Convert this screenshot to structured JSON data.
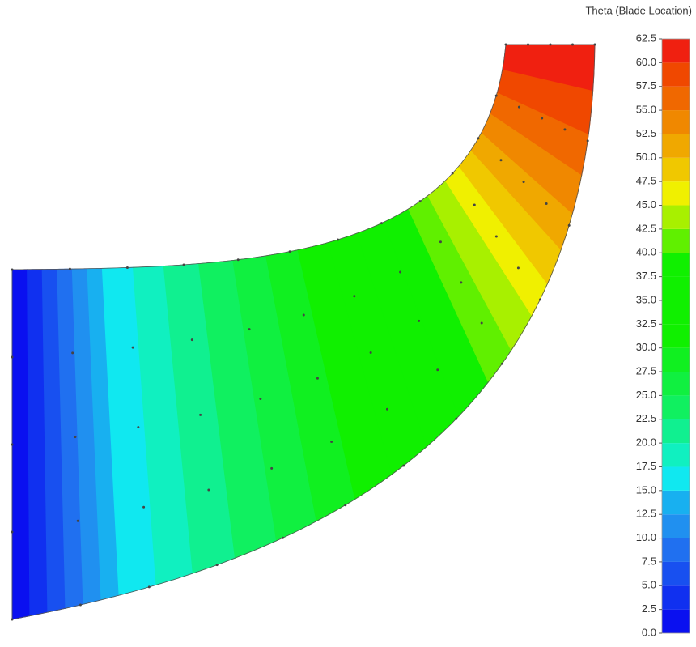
{
  "chart_data": {
    "type": "contour",
    "colorbar": {
      "title": "Theta (Blade Location)",
      "ticks": [
        {
          "value": 0,
          "label": "0.0"
        },
        2.5,
        {
          "value": 5,
          "label": "5.0"
        },
        7.5,
        {
          "value": 10,
          "label": "10.0"
        },
        12.5,
        {
          "value": 15,
          "label": "15.0"
        },
        17.5,
        {
          "value": 20,
          "label": "20.0"
        },
        22.5,
        {
          "value": 25,
          "label": "25.0"
        },
        27.5,
        {
          "value": 30,
          "label": "30.0"
        },
        32.5,
        {
          "value": 35,
          "label": "35.0"
        },
        37.5,
        {
          "value": 40,
          "label": "40.0"
        },
        42.5,
        {
          "value": 45,
          "label": "45.0"
        },
        47.5,
        {
          "value": 50,
          "label": "50.0"
        },
        52.5,
        {
          "value": 55,
          "label": "55.0"
        },
        57.5,
        {
          "value": 60,
          "label": "60.0"
        },
        62.5
      ],
      "colors": [
        "#0a10f0",
        "#1030f0",
        "#1850f0",
        "#2070f0",
        "#2090f0",
        "#18b0f0",
        "#10e8f0",
        "#10f0c0",
        "#10f090",
        "#10f060",
        "#10f040",
        "#10f020",
        "#10f000",
        "#10f000",
        "#10f000",
        "#10f000",
        "#60f000",
        "#a8f000",
        "#f0f000",
        "#f0c800",
        "#f0a800",
        "#f08800",
        "#f06800",
        "#f04800",
        "#f02010"
      ]
    }
  }
}
